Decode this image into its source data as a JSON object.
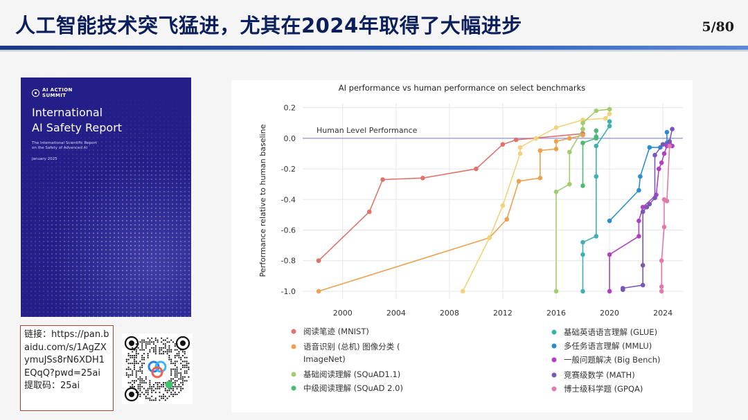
{
  "slide": {
    "title": "人工智能技术突飞猛进，尤其在2024年取得了大幅进步",
    "page_number": "5/80"
  },
  "report_cover": {
    "logo_line1": "AI ACTION",
    "logo_line2": "SUMMIT",
    "title_line1": "International",
    "title_line2": "AI Safety Report",
    "subtitle_line1": "The International Scientific Report",
    "subtitle_line2": "on the Safety of Advanced AI",
    "date": "January 2025",
    "color": "#231e88"
  },
  "link_box": {
    "text": "链接：https://pan.baidu.com/s/1AgZXymuJSs8rN6XDH1EQqQ?pwd=25ai 提取码：25ai"
  },
  "qr": {
    "icon": "baidu-netdisk-qr-code"
  },
  "chart_data": {
    "type": "line",
    "title": "AI performance vs human performance on select benchmarks",
    "ylabel": "Performance relative to human baseline",
    "xlabel": "",
    "xlim": [
      1997,
      2025.5
    ],
    "ylim": [
      -1.05,
      0.23
    ],
    "xticks": [
      2000,
      2004,
      2008,
      2012,
      2016,
      2020,
      2024
    ],
    "yticks": [
      0.2,
      0.0,
      -0.2,
      -0.4,
      -0.6,
      -0.8,
      -1.0
    ],
    "ytick_labels": [
      "0.2",
      "0.0",
      "-0.2",
      "-0.4",
      "-0.6",
      "-0.8",
      "-1.0"
    ],
    "grid": true,
    "baseline": {
      "y": 0,
      "label": "Human Level Performance"
    },
    "legend_position": "bottom",
    "legend_columns": [
      [
        "阅读笔迹 (MNIST)",
        "语音识别 (总机) 图像分类 (",
        "ImageNet)",
        "基础阅读理解 (SQuAD1.1)",
        "中级阅读理解 (SQuAD 2.0)"
      ],
      [
        "基础英语语言理解 (GLUE)",
        "多任务语言理解 (MMLU)",
        "一般问题解决 (Big Bench)",
        "竞赛级数学 (MATH)",
        "博士级科学题 (GPQA)"
      ]
    ],
    "series": [
      {
        "name": "阅读笔迹 (MNIST)",
        "color": "#e0726a",
        "points": [
          [
            1998.2,
            -0.8
          ],
          [
            1998.2,
            -0.8
          ],
          [
            2002,
            -0.48
          ],
          [
            2003,
            -0.27
          ],
          [
            2006,
            -0.26
          ],
          [
            2010,
            -0.2
          ],
          [
            2012,
            -0.04
          ],
          [
            2013,
            -0.01
          ],
          [
            2018,
            0.03
          ],
          [
            2018,
            0.03
          ]
        ]
      },
      {
        "name": "语音识别 (总机)",
        "color": "#eba14e",
        "points": [
          [
            1998.2,
            -1.0
          ],
          [
            2011,
            -0.65
          ],
          [
            2012.3,
            -0.53
          ],
          [
            2013.2,
            -0.28
          ],
          [
            2014.8,
            -0.26
          ],
          [
            2014.8,
            -0.08
          ],
          [
            2016,
            -0.07
          ],
          [
            2016,
            -0.02
          ],
          [
            2017,
            0.0
          ],
          [
            2018,
            0.02
          ]
        ]
      },
      {
        "name": "图像分类 (ImageNet)",
        "color": "#f2d27a",
        "points": [
          [
            2009,
            -1.0
          ],
          [
            2011,
            -0.65
          ],
          [
            2012,
            -0.44
          ],
          [
            2013.3,
            -0.1
          ],
          [
            2013.3,
            -0.06
          ],
          [
            2014.5,
            0.0
          ],
          [
            2016,
            0.07
          ],
          [
            2018,
            0.12
          ],
          [
            2019.7,
            0.13
          ],
          [
            2020,
            0.16
          ]
        ]
      },
      {
        "name": "基础阅读理解 (SQuAD1.1)",
        "color": "#a3cc6e",
        "points": [
          [
            2016,
            -1.0
          ],
          [
            2016,
            -0.35
          ],
          [
            2017,
            -0.3
          ],
          [
            2017,
            -0.09
          ],
          [
            2018,
            0.06
          ],
          [
            2018,
            0.1
          ],
          [
            2019,
            0.18
          ],
          [
            2020,
            0.19
          ]
        ]
      },
      {
        "name": "中级阅读理解 (SQuAD 2.0)",
        "color": "#4cba72",
        "points": [
          [
            2018,
            -0.31
          ],
          [
            2018,
            -0.03
          ],
          [
            2019,
            0.0
          ],
          [
            2019,
            0.01
          ],
          [
            2019,
            0.05
          ]
        ]
      },
      {
        "name": "基础英语语言理解 (GLUE)",
        "color": "#3fb0b0",
        "points": [
          [
            2018,
            -1.0
          ],
          [
            2018,
            -0.76
          ],
          [
            2018,
            -0.68
          ],
          [
            2019,
            -0.64
          ],
          [
            2019,
            -0.25
          ],
          [
            2019,
            -0.05
          ],
          [
            2020,
            0.08
          ],
          [
            2020,
            0.11
          ]
        ]
      },
      {
        "name": "多任务语言理解 (MMLU)",
        "color": "#2b8fcf",
        "points": [
          [
            2020,
            -0.54
          ],
          [
            2022.2,
            -0.34
          ],
          [
            2022.3,
            -0.25
          ],
          [
            2023,
            -0.06
          ],
          [
            2023.8,
            -0.06
          ],
          [
            2024,
            -0.04
          ],
          [
            2024.3,
            -0.03
          ],
          [
            2024.3,
            0.04
          ]
        ]
      },
      {
        "name": "一般问题解决 (Big Bench)",
        "color": "#b03fc4",
        "points": [
          [
            2020,
            -1.0
          ],
          [
            2020,
            -0.76
          ],
          [
            2022.2,
            -0.64
          ],
          [
            2022.2,
            -0.54
          ],
          [
            2022.5,
            -0.45
          ],
          [
            2023.5,
            -0.37
          ],
          [
            2023.7,
            -0.2
          ],
          [
            2023.9,
            -0.16
          ],
          [
            2024.1,
            -0.1
          ],
          [
            2024.3,
            -0.05
          ],
          [
            2024.5,
            -0.03
          ],
          [
            2024.7,
            -0.05
          ]
        ]
      },
      {
        "name": "竞赛级数学 (MATH)",
        "color": "#7857b6",
        "points": [
          [
            2021,
            -0.99
          ],
          [
            2021,
            -0.98
          ],
          [
            2022.5,
            -0.96
          ],
          [
            2022.5,
            -0.83
          ],
          [
            2022.5,
            -0.48
          ],
          [
            2022.8,
            -0.45
          ],
          [
            2023,
            -0.43
          ],
          [
            2023.4,
            -0.39
          ],
          [
            2023.4,
            -0.11
          ],
          [
            2024,
            -0.04
          ],
          [
            2024.5,
            -0.02
          ],
          [
            2024.7,
            0.06
          ]
        ]
      },
      {
        "name": "博士级科学题 (GPQA)",
        "color": "#e279ad",
        "points": [
          [
            2023.9,
            -1.0
          ],
          [
            2023.9,
            -0.97
          ],
          [
            2023.9,
            -0.8
          ],
          [
            2024.1,
            -0.58
          ],
          [
            2024.1,
            -0.4
          ],
          [
            2024.3,
            -0.41
          ],
          [
            2024.5,
            -0.05
          ]
        ]
      }
    ]
  }
}
